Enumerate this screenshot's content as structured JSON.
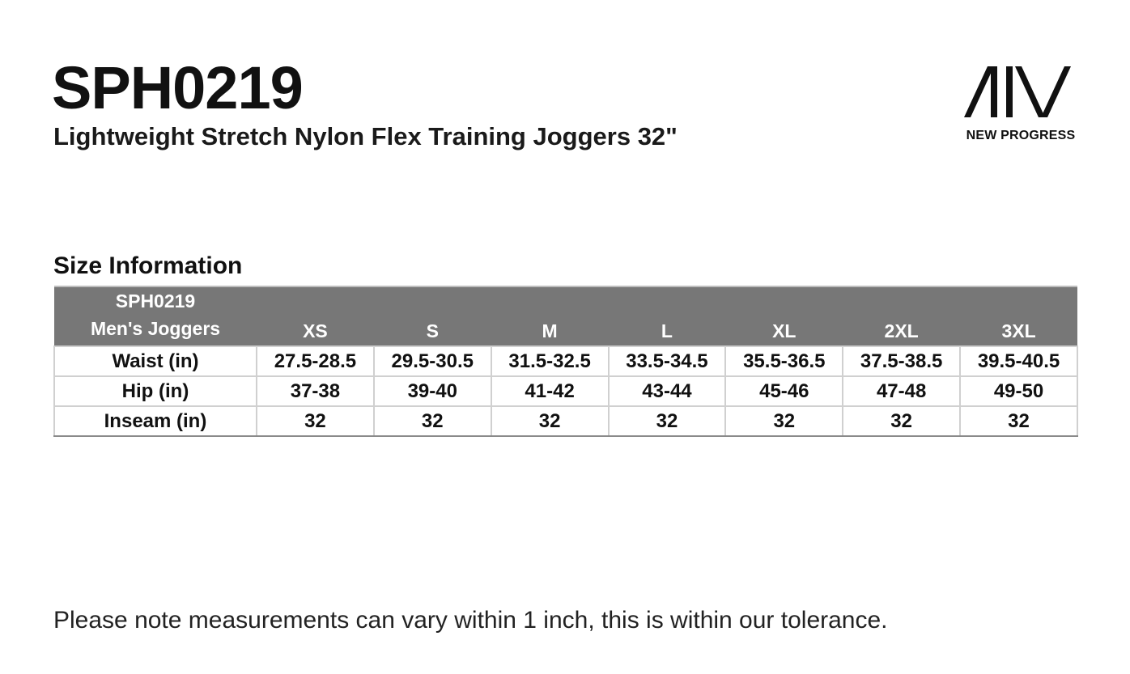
{
  "header": {
    "product_code": "SPH0219",
    "product_name": "Lightweight Stretch Nylon Flex Training Joggers 32\""
  },
  "brand": {
    "logo_icon": "aiv-logo-icon",
    "name": "NEW PROGRESS"
  },
  "size_section": {
    "title": "Size Information",
    "table": {
      "corner_line1": "SPH0219",
      "corner_line2": "Men's Joggers",
      "header_color": "#777777",
      "sizes": [
        "XS",
        "S",
        "M",
        "L",
        "XL",
        "2XL",
        "3XL"
      ],
      "rows": [
        {
          "label": "Waist (in)",
          "values": [
            "27.5-28.5",
            "29.5-30.5",
            "31.5-32.5",
            "33.5-34.5",
            "35.5-36.5",
            "37.5-38.5",
            "39.5-40.5"
          ]
        },
        {
          "label": "Hip (in)",
          "values": [
            "37-38",
            "39-40",
            "41-42",
            "43-44",
            "45-46",
            "47-48",
            "49-50"
          ]
        },
        {
          "label": "Inseam (in)",
          "values": [
            "32",
            "32",
            "32",
            "32",
            "32",
            "32",
            "32"
          ]
        }
      ]
    }
  },
  "footer": {
    "note": "Please note measurements can vary within 1 inch, this is within our tolerance."
  }
}
